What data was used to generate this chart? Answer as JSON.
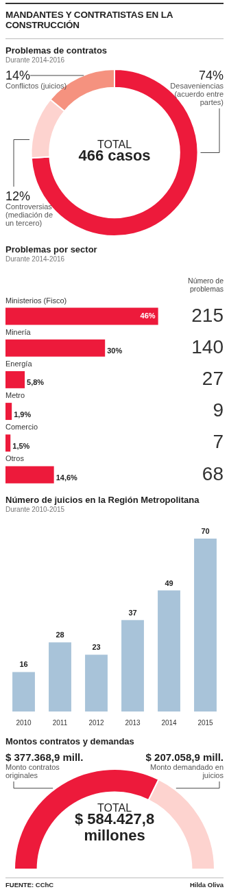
{
  "chart_data": [
    {
      "type": "other",
      "title": "MANDANTES Y CONTRATISTAS EN LA CONSTRUCCIÓN"
    },
    {
      "type": "donut",
      "title": "Problemas de contratos",
      "subtitle": "Durante 2014-2016",
      "categories": [
        "Desaveniencias (acuerdo entre partes)",
        "Controversias (mediación de un tercero)",
        "Conflictos (juicios)"
      ],
      "values": [
        74,
        12,
        14
      ],
      "colors": [
        "#ed1a3b",
        "#fdd3cf",
        "#f5927f"
      ],
      "value_labels": [
        "74%",
        "12%",
        "14%"
      ],
      "annotations": [
        "TOTAL",
        "466 casos"
      ]
    },
    {
      "type": "bar",
      "orientation": "horizontal",
      "title": "Problemas por sector",
      "subtitle": "Durante 2014-2016",
      "categories": [
        "Ministerios (Fisco)",
        "Minería",
        "Energía",
        "Metro",
        "Comercio",
        "Otros"
      ],
      "values": [
        46,
        30,
        5.8,
        1.9,
        1.5,
        14.6
      ],
      "color": "#ed1a3b",
      "value_labels": [
        "46%",
        "30%",
        "5,8%",
        "1,9%",
        "1,5%",
        "14,6%"
      ],
      "annotations": [
        "Número de problemas",
        "215",
        "140",
        "27",
        "9",
        "7",
        "68"
      ]
    },
    {
      "type": "bar",
      "title": "Número de juicios en la Región Metropolitana",
      "subtitle": "Durante 2010-2015",
      "categories": [
        "2010",
        "2011",
        "2012",
        "2013",
        "2014",
        "2015"
      ],
      "values": [
        16,
        28,
        23,
        37,
        49,
        70
      ],
      "color": "#a8c3d9",
      "data_labels": true
    },
    {
      "type": "donut",
      "title": "Montos contratos y demandas",
      "categories": [
        "Monto contratos originales",
        "Monto demandado en juicios"
      ],
      "values": [
        377368.9,
        207058.9
      ],
      "colors": [
        "#ed1a3b",
        "#fdd3cf"
      ],
      "value_labels": [
        "$ 377.368,9 mill.",
        "$ 207.058,9 mill."
      ],
      "annotations": [
        "TOTAL",
        "$ 584.427,8 millones"
      ]
    },
    {
      "type": "other",
      "annotations": [
        "FUENTE: CChC",
        "Hilda Oliva"
      ]
    }
  ]
}
